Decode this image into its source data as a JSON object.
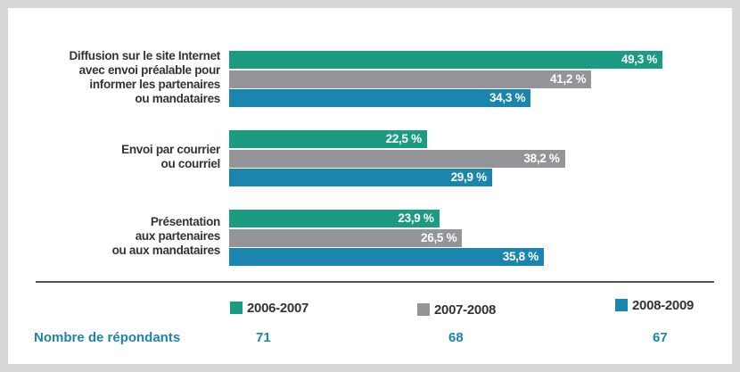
{
  "chart_data": {
    "type": "bar",
    "orientation": "horizontal",
    "categories": [
      "Diffusion sur le site Internet\navec envoi préalable pour\ninformer les partenaires\nou mandataires",
      "Envoi par courrier\nou courriel",
      "Présentation\naux partenaires\nou aux mandataires"
    ],
    "series": [
      {
        "name": "2006-2007",
        "color": "#1a9b82",
        "values": [
          49.3,
          22.5,
          23.9
        ],
        "value_labels": [
          "49,3 %",
          "22,5 %",
          "23,9 %"
        ]
      },
      {
        "name": "2007-2008",
        "color": "#939598",
        "values": [
          41.2,
          38.2,
          26.5
        ],
        "value_labels": [
          "41,2 %",
          "38,2 %",
          "26,5 %"
        ]
      },
      {
        "name": "2008-2009",
        "color": "#1b86ad",
        "values": [
          34.3,
          29.9,
          35.8
        ],
        "value_labels": [
          "34,3 %",
          "29,9 %",
          "35,8 %"
        ]
      }
    ],
    "respondents_label": "Nombre de répondants",
    "respondents": [
      71,
      68,
      67
    ]
  }
}
